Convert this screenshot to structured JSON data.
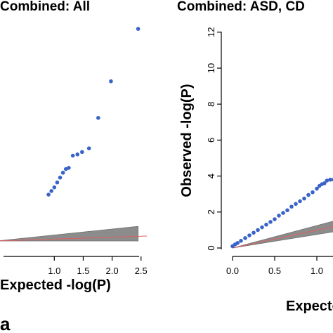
{
  "panel_left": {
    "title": "Combined: All",
    "xlabel": "Expected -log(P)",
    "panel_tag": "a"
  },
  "panel_right": {
    "title": "Combined: ASD, CD",
    "xlabel": "Expected -log(P)",
    "ylabel": "Observed -log(P)"
  },
  "chart_data": [
    {
      "type": "scatter",
      "title": "Combined: All",
      "xlabel": "Expected -log(P)",
      "ylabel": "",
      "xlim": [
        0.0,
        2.6
      ],
      "ylim": [
        0,
        9.5
      ],
      "x_ticks": [
        "1.0",
        "1.5",
        "2.0",
        "2.5"
      ],
      "x_tick_values": [
        1.0,
        1.5,
        2.0,
        2.5
      ],
      "color": "#3a63c9",
      "points": [
        {
          "x": 0.9,
          "y": 1.9
        },
        {
          "x": 0.95,
          "y": 2.05
        },
        {
          "x": 1.0,
          "y": 2.2
        },
        {
          "x": 1.05,
          "y": 2.4
        },
        {
          "x": 1.1,
          "y": 2.6
        },
        {
          "x": 1.15,
          "y": 2.8
        },
        {
          "x": 1.2,
          "y": 2.95
        },
        {
          "x": 1.25,
          "y": 3.0
        },
        {
          "x": 1.32,
          "y": 3.5
        },
        {
          "x": 1.4,
          "y": 3.55
        },
        {
          "x": 1.48,
          "y": 3.65
        },
        {
          "x": 1.6,
          "y": 3.8
        },
        {
          "x": 1.76,
          "y": 5.05
        },
        {
          "x": 1.98,
          "y": 6.55
        },
        {
          "x": 2.45,
          "y": 8.7
        }
      ],
      "null_line": [
        [
          0.0,
          0.0
        ],
        [
          2.6,
          0.2
        ]
      ],
      "confidence_band": [
        [
          0.0,
          0.0,
          0.0
        ],
        [
          2.45,
          0.0,
          0.6
        ]
      ]
    },
    {
      "type": "scatter",
      "title": "Combined: ASD, CD",
      "xlabel": "Expected -log(P)",
      "ylabel": "Observed -log(P)",
      "xlim": [
        0.0,
        1.2
      ],
      "ylim": [
        0,
        12
      ],
      "x_ticks": [
        "0.0",
        "0.5",
        "1.0"
      ],
      "x_tick_values": [
        0.0,
        0.5,
        1.0
      ],
      "y_ticks": [
        "0",
        "2",
        "4",
        "6",
        "8",
        "10",
        "12"
      ],
      "y_tick_values": [
        0,
        2,
        4,
        6,
        8,
        10,
        12
      ],
      "color": "#3a63c9",
      "points": [
        {
          "x": 0.0,
          "y": 0.1
        },
        {
          "x": 0.03,
          "y": 0.2
        },
        {
          "x": 0.06,
          "y": 0.28
        },
        {
          "x": 0.1,
          "y": 0.4
        },
        {
          "x": 0.15,
          "y": 0.55
        },
        {
          "x": 0.2,
          "y": 0.7
        },
        {
          "x": 0.25,
          "y": 0.85
        },
        {
          "x": 0.3,
          "y": 1.0
        },
        {
          "x": 0.35,
          "y": 1.15
        },
        {
          "x": 0.4,
          "y": 1.3
        },
        {
          "x": 0.45,
          "y": 1.45
        },
        {
          "x": 0.5,
          "y": 1.6
        },
        {
          "x": 0.55,
          "y": 1.8
        },
        {
          "x": 0.6,
          "y": 1.95
        },
        {
          "x": 0.65,
          "y": 2.1
        },
        {
          "x": 0.7,
          "y": 2.3
        },
        {
          "x": 0.75,
          "y": 2.45
        },
        {
          "x": 0.8,
          "y": 2.6
        },
        {
          "x": 0.85,
          "y": 2.75
        },
        {
          "x": 0.9,
          "y": 2.95
        },
        {
          "x": 0.95,
          "y": 3.1
        },
        {
          "x": 1.0,
          "y": 3.3
        },
        {
          "x": 1.03,
          "y": 3.45
        },
        {
          "x": 1.06,
          "y": 3.55
        },
        {
          "x": 1.09,
          "y": 3.6
        },
        {
          "x": 1.12,
          "y": 3.75
        },
        {
          "x": 1.16,
          "y": 3.8
        },
        {
          "x": 1.2,
          "y": 3.8
        }
      ],
      "null_line": [
        [
          0.0,
          0.0
        ],
        [
          1.2,
          1.2
        ]
      ],
      "confidence_band": [
        [
          0.0,
          0.0,
          0.0
        ],
        [
          1.2,
          0.9,
          1.5
        ]
      ]
    }
  ]
}
